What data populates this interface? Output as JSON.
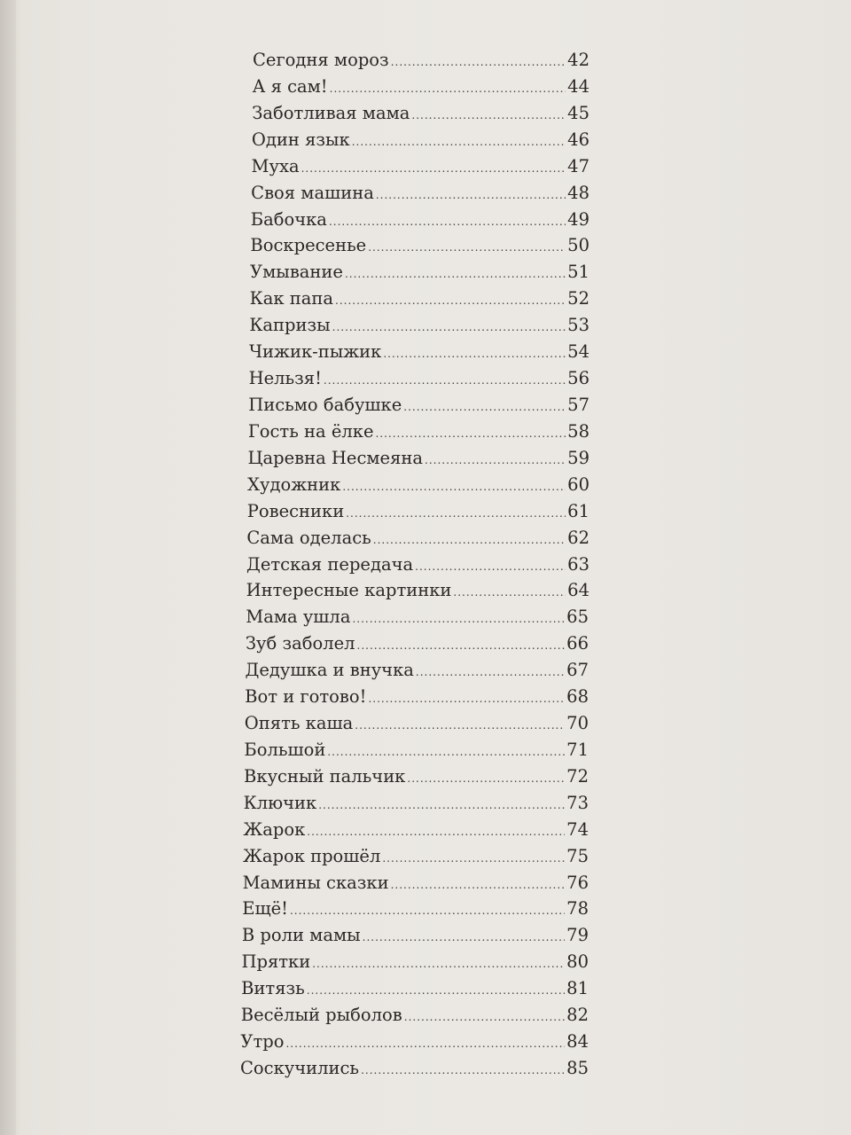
{
  "toc": {
    "entries": [
      {
        "title": "Сегодня мороз",
        "page": "42"
      },
      {
        "title": "А я сам!",
        "page": "44"
      },
      {
        "title": "Заботливая мама",
        "page": "45"
      },
      {
        "title": "Один язык",
        "page": "46"
      },
      {
        "title": "Муха",
        "page": "47"
      },
      {
        "title": "Своя машина",
        "page": "48"
      },
      {
        "title": "Бабочка",
        "page": "49"
      },
      {
        "title": "Воскресенье",
        "page": "50"
      },
      {
        "title": "Умывание",
        "page": "51"
      },
      {
        "title": "Как папа",
        "page": "52"
      },
      {
        "title": "Капризы",
        "page": "53"
      },
      {
        "title": "Чижик-пыжик",
        "page": "54"
      },
      {
        "title": "Нельзя!",
        "page": "56"
      },
      {
        "title": "Письмо бабушке",
        "page": "57"
      },
      {
        "title": "Гость на ёлке",
        "page": "58"
      },
      {
        "title": "Царевна Несмеяна",
        "page": "59"
      },
      {
        "title": "Художник",
        "page": "60"
      },
      {
        "title": "Ровесники",
        "page": "61"
      },
      {
        "title": "Сама оделась",
        "page": "62"
      },
      {
        "title": "Детская передача",
        "page": "63"
      },
      {
        "title": "Интересные картинки",
        "page": "64"
      },
      {
        "title": "Мама ушла",
        "page": "65"
      },
      {
        "title": "Зуб заболел",
        "page": "66"
      },
      {
        "title": "Дедушка и внучка",
        "page": "67"
      },
      {
        "title": "Вот и готово!",
        "page": "68"
      },
      {
        "title": "Опять каша",
        "page": "70"
      },
      {
        "title": "Большой",
        "page": "71"
      },
      {
        "title": "Вкусный пальчик",
        "page": "72"
      },
      {
        "title": "Ключик",
        "page": "73"
      },
      {
        "title": "Жарок",
        "page": "74"
      },
      {
        "title": "Жарок прошёл",
        "page": "75"
      },
      {
        "title": "Мамины сказки",
        "page": "76"
      },
      {
        "title": "Ещё!",
        "page": "78"
      },
      {
        "title": "В роли мамы",
        "page": "79"
      },
      {
        "title": "Прятки",
        "page": "80"
      },
      {
        "title": "Витязь",
        "page": "81"
      },
      {
        "title": "Весёлый рыболов",
        "page": "82"
      },
      {
        "title": "Утро",
        "page": "84"
      },
      {
        "title": "Соскучились",
        "page": "85"
      }
    ]
  }
}
